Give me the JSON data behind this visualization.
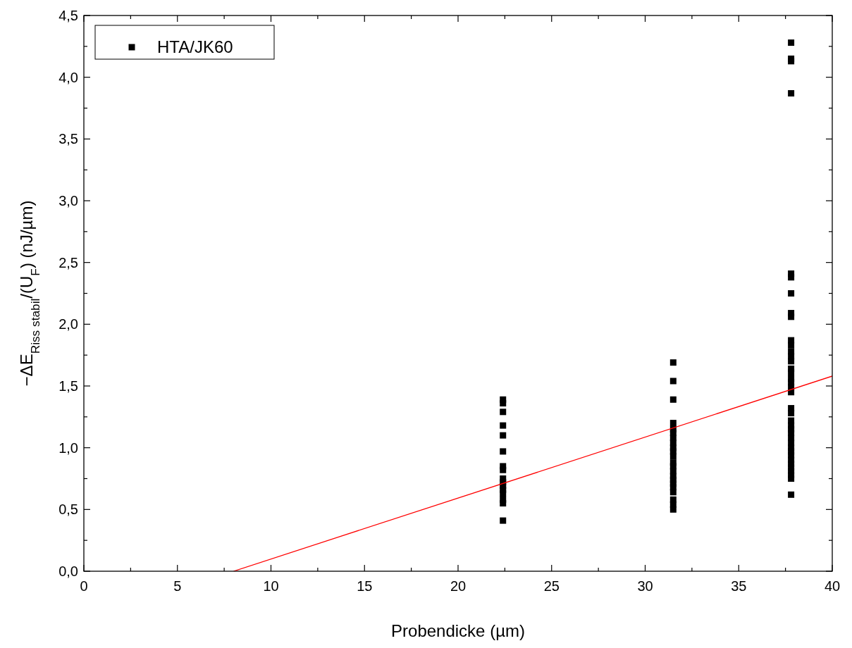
{
  "chart_data": {
    "type": "scatter",
    "xlabel": "Probendicke (µm)",
    "ylabel": "−ΔE$_{Riss stabil}$/(U$_{F}$) (nJ/µm)",
    "xlim": [
      0,
      40
    ],
    "ylim": [
      0,
      4.5
    ],
    "xticks": [
      0,
      {
        "value": 2.5,
        "label": null
      },
      5,
      {
        "value": 7.5,
        "label": null
      },
      10,
      {
        "value": 12.5,
        "label": null
      },
      15,
      {
        "value": 17.5,
        "label": null
      },
      20,
      {
        "value": 22.5,
        "label": null
      },
      25,
      {
        "value": 27.5,
        "label": null
      },
      30,
      {
        "value": 32.5,
        "label": null
      },
      35,
      {
        "value": 37.5,
        "label": null
      },
      40
    ],
    "yticks": [
      {
        "value": 0,
        "label": "0,0"
      },
      {
        "value": 0.25,
        "label": null
      },
      {
        "value": 0.5,
        "label": "0,5"
      },
      {
        "value": 0.75,
        "label": null
      },
      {
        "value": 1,
        "label": "1,0"
      },
      {
        "value": 1.25,
        "label": null
      },
      {
        "value": 1.5,
        "label": "1,5"
      },
      {
        "value": 1.75,
        "label": null
      },
      {
        "value": 2,
        "label": "2,0"
      },
      {
        "value": 2.25,
        "label": null
      },
      {
        "value": 2.5,
        "label": "2,5"
      },
      {
        "value": 2.75,
        "label": null
      },
      {
        "value": 3,
        "label": "3,0"
      },
      {
        "value": 3.25,
        "label": null
      },
      {
        "value": 3.5,
        "label": "3,5"
      },
      {
        "value": 3.75,
        "label": null
      },
      {
        "value": 4,
        "label": "4,0"
      },
      {
        "value": 4.25,
        "label": null
      },
      {
        "value": 4.5,
        "label": "4,5"
      }
    ],
    "grid": false,
    "legend": "top left",
    "series": [
      {
        "name": "HTA/JK60",
        "color": "#000000",
        "marker": "square",
        "x": [
          22.4,
          22.4,
          22.4,
          22.4,
          22.4,
          22.4,
          22.4,
          22.4,
          22.4,
          22.4,
          22.4,
          22.4,
          22.4,
          22.4,
          22.4,
          22.4,
          31.5,
          31.5,
          31.5,
          31.5,
          31.5,
          31.5,
          31.5,
          31.5,
          31.5,
          31.5,
          31.5,
          31.5,
          31.5,
          31.5,
          31.5,
          31.5,
          31.5,
          31.5,
          31.5,
          31.5,
          31.5,
          31.5,
          37.8,
          37.8,
          37.8,
          37.8,
          37.8,
          37.8,
          37.8,
          37.8,
          37.8,
          37.8,
          37.8,
          37.8,
          37.8,
          37.8,
          37.8,
          37.8,
          37.8,
          37.8,
          37.8,
          37.8,
          37.8,
          37.8,
          37.8,
          37.8,
          37.8,
          37.8,
          37.8,
          37.8,
          37.8,
          37.8,
          37.8,
          37.8,
          37.8,
          37.8,
          37.8,
          37.8,
          37.8,
          37.8
        ],
        "values": [
          1.39,
          1.36,
          1.29,
          1.18,
          1.1,
          0.97,
          0.85,
          0.82,
          0.75,
          0.72,
          0.69,
          0.66,
          0.63,
          0.58,
          0.55,
          0.41,
          1.69,
          1.54,
          1.39,
          1.2,
          1.15,
          1.12,
          1.08,
          1.04,
          1.0,
          0.97,
          0.93,
          0.88,
          0.85,
          0.81,
          0.77,
          0.74,
          0.71,
          0.68,
          0.64,
          0.58,
          0.54,
          0.5,
          4.28,
          4.15,
          4.13,
          3.87,
          2.41,
          2.38,
          2.25,
          2.09,
          2.06,
          1.87,
          1.83,
          1.78,
          1.74,
          1.7,
          1.64,
          1.61,
          1.56,
          1.53,
          1.49,
          1.45,
          1.32,
          1.28,
          1.22,
          1.18,
          1.15,
          1.12,
          1.08,
          1.04,
          1.0,
          0.97,
          0.94,
          0.9,
          0.87,
          0.84,
          0.81,
          0.78,
          0.75,
          0.62
        ]
      },
      {
        "type": "line",
        "color": "#ff0000",
        "x": [
          8,
          40
        ],
        "values": [
          0,
          1.58
        ],
        "line_style": "solid",
        "marker": "none"
      }
    ]
  }
}
